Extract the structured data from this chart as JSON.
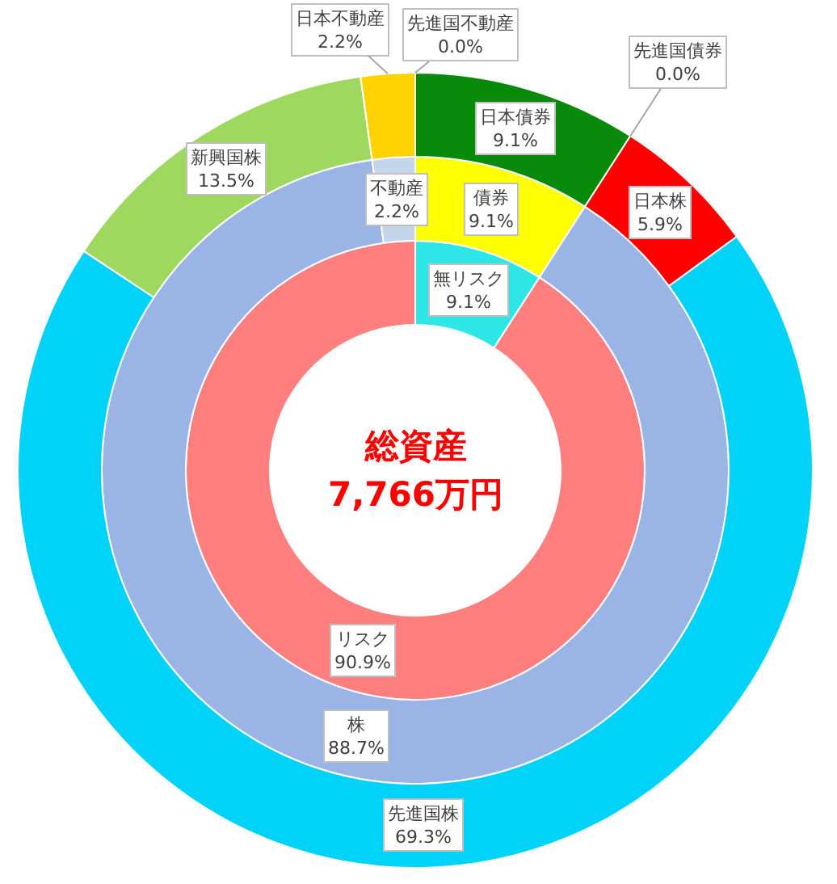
{
  "chart_data": [
    {
      "type": "donut",
      "title": "総資産",
      "subtitle": "7,766万円",
      "categories": [
        "無リスク",
        "リスク"
      ],
      "values": [
        9.1,
        90.9
      ],
      "colors": [
        "#2ee6e6",
        "#ff7f7f"
      ],
      "value_labels": [
        "9.1%",
        "90.9%"
      ]
    },
    {
      "type": "donut",
      "categories": [
        "債券",
        "株",
        "不動産"
      ],
      "values": [
        9.1,
        88.7,
        2.2
      ],
      "colors": [
        "#ffff00",
        "#9bb4e6",
        "#c3d6ea"
      ],
      "value_labels": [
        "9.1%",
        "88.7%",
        "2.2%"
      ]
    },
    {
      "type": "donut",
      "categories": [
        "日本債券",
        "先進国債券",
        "日本株",
        "先進国株",
        "新興国株",
        "日本不動産",
        "先進国不動産"
      ],
      "values": [
        9.1,
        0.0,
        5.9,
        69.3,
        13.5,
        2.2,
        0.0
      ],
      "colors": [
        "#0a8a0a",
        null,
        "#ff0000",
        "#00d2f8",
        "#9fd85f",
        "#ffd200",
        null
      ],
      "value_labels": [
        "9.1%",
        "0.0%",
        "5.9%",
        "69.3%",
        "13.5%",
        "2.2%",
        "0.0%"
      ]
    }
  ]
}
